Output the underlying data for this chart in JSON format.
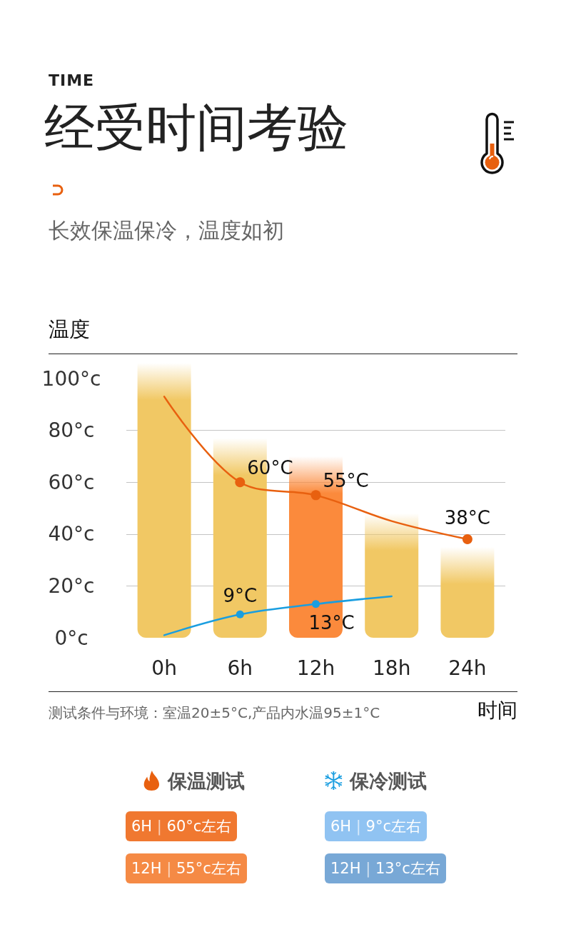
{
  "chart_data": {
    "type": "bar",
    "title": "经受时间考验",
    "subtitle": "长效保温保冷，温度如初",
    "xlabel": "时间",
    "ylabel": "温度",
    "annotations": [
      "TIME",
      "测试条件与环境：室温20±5°C,产品内水温95±1°C",
      "6H | 60°c左右",
      "6H | 9°c左右",
      "12H | 55°c左右",
      "12H | 13°c左右"
    ],
    "categories": [
      "0h",
      "6h",
      "12h",
      "18h",
      "24h"
    ],
    "series": [
      {
        "colors": [
          "#f1c864",
          "#f1c864",
          "#fb8a3c",
          "#f1c864",
          "#f1c864"
        ],
        "values": [
          106,
          77,
          70,
          48,
          35
        ]
      },
      {
        "type": "line",
        "name": "保温测试",
        "color": "#e8600f",
        "values": [
          93,
          60,
          55,
          45,
          38
        ],
        "value_labels": [
          null,
          "60°C",
          "55°C",
          null,
          "38°C"
        ]
      },
      {
        "type": "line",
        "name": "保冷测试",
        "color": "#1a9ee0",
        "values": [
          1,
          9,
          13,
          16,
          null
        ],
        "value_labels": [
          null,
          "9°C",
          "13°C",
          null,
          null
        ]
      }
    ],
    "ylim": [
      0,
      110
    ],
    "yticks": [
      {
        "value": 0,
        "label": "0°c"
      },
      {
        "value": 20,
        "label": "20°c"
      },
      {
        "value": 40,
        "label": "40°c"
      },
      {
        "value": 60,
        "label": "60°c"
      },
      {
        "value": 80,
        "label": "80°c"
      },
      {
        "value": 100,
        "label": "100°c"
      }
    ],
    "grid": "y",
    "legend": "bottom",
    "marker": "circle",
    "line_style": "solid"
  }
}
